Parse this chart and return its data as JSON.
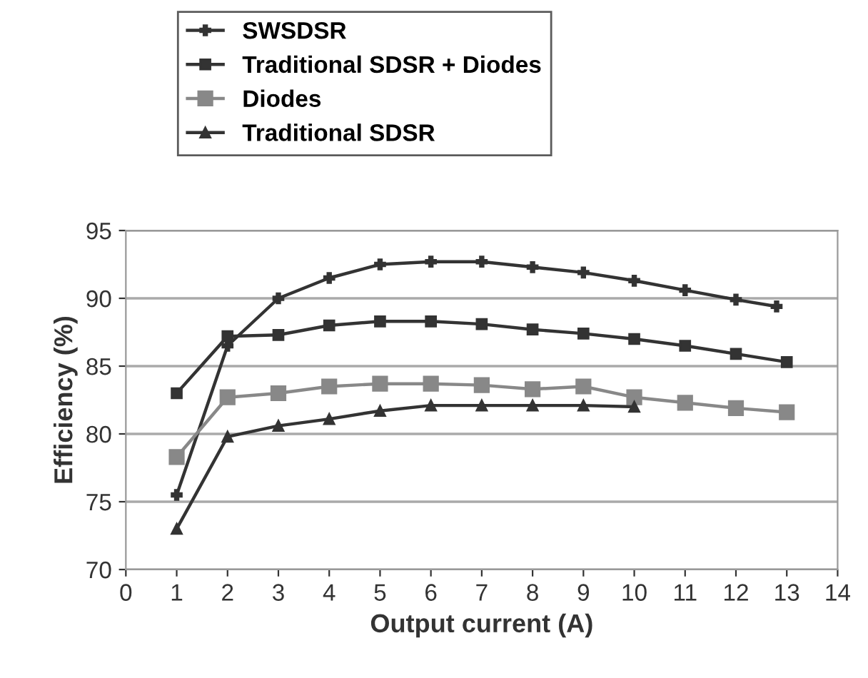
{
  "chart_data": {
    "type": "line",
    "xlabel": "Output current (A)",
    "ylabel": "Efficiency (%)",
    "xlim": [
      0,
      14
    ],
    "xticks": [
      0,
      1,
      2,
      3,
      4,
      5,
      6,
      7,
      8,
      9,
      10,
      11,
      12,
      13,
      14
    ],
    "ylim": [
      70,
      95
    ],
    "yticks": [
      70,
      75,
      80,
      85,
      90,
      95
    ],
    "grid": "y",
    "legend": "top",
    "series": [
      {
        "name": "SWSDSR",
        "color": "#333333",
        "marker": "cross",
        "x": [
          1,
          2,
          3,
          4,
          5,
          6,
          7,
          8,
          9,
          10,
          11,
          12,
          12.8
        ],
        "values": [
          75.5,
          86.5,
          90,
          91.5,
          92.5,
          92.7,
          92.7,
          92.3,
          91.9,
          91.3,
          90.6,
          89.9,
          89.4
        ]
      },
      {
        "name": "Traditional SDSR + Diodes",
        "color": "#333333",
        "marker": "square",
        "x": [
          1,
          2,
          3,
          4,
          5,
          6,
          7,
          8,
          9,
          10,
          11,
          12,
          13
        ],
        "values": [
          83,
          87.2,
          87.3,
          88,
          88.3,
          88.3,
          88.1,
          87.7,
          87.4,
          87,
          86.5,
          85.9,
          85.3
        ]
      },
      {
        "name": "Diodes",
        "color": "#888888",
        "marker": "square",
        "x": [
          1,
          2,
          3,
          4,
          5,
          6,
          7,
          8,
          9,
          10,
          11,
          12,
          13
        ],
        "values": [
          78.3,
          82.7,
          83,
          83.5,
          83.7,
          83.7,
          83.6,
          83.3,
          83.5,
          82.7,
          82.3,
          81.9,
          81.6
        ]
      },
      {
        "name": "Traditional SDSR",
        "color": "#333333",
        "marker": "triangle",
        "x": [
          1,
          2,
          3,
          4,
          5,
          6,
          7,
          8,
          9,
          10
        ],
        "values": [
          73,
          79.8,
          80.6,
          81.1,
          81.7,
          82.1,
          82.1,
          82.1,
          82.1,
          82.0
        ]
      }
    ]
  }
}
